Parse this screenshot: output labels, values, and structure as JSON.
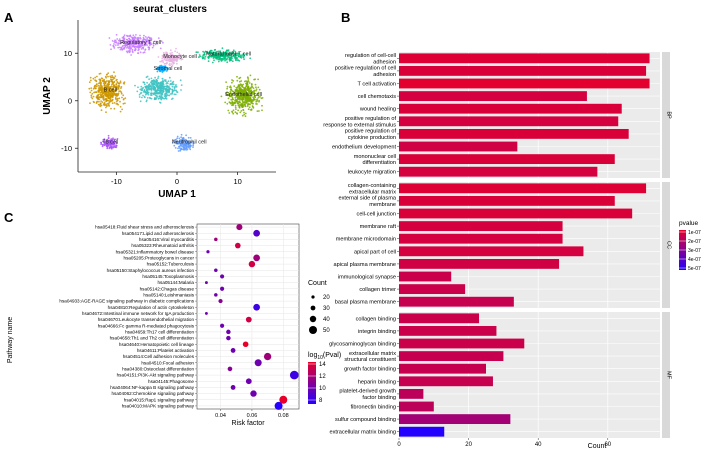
{
  "panel_labels": {
    "a": "A",
    "b": "B",
    "c": "C"
  },
  "chart_data": [
    {
      "id": "A",
      "type": "scatter",
      "title": "seurat_clusters",
      "xlabel": "UMAP 1",
      "ylabel": "UMAP 2",
      "xlim": [
        -16,
        16
      ],
      "ylim": [
        -15,
        17
      ],
      "xticks": [
        -10,
        0,
        10
      ],
      "yticks": [
        -10,
        0,
        10
      ],
      "xtick_labels": [
        "-10",
        "0",
        "10"
      ],
      "ytick_labels": [
        "-10",
        "0",
        "10"
      ],
      "clusters": [
        {
          "name": "Regulatory T cell",
          "color": "#c77cff",
          "center": [
            -7,
            12
          ],
          "spread": [
            3.2,
            1.6
          ],
          "label_at": [
            -6,
            12
          ]
        },
        {
          "name": "Monocyte cell",
          "color": "#e8b2e0",
          "center": [
            -1,
            9
          ],
          "spread": [
            1.5,
            1.4
          ],
          "label_at": [
            0.5,
            9
          ]
        },
        {
          "name": "Stromal cell",
          "color": "#00a9ff",
          "center": [
            -2.5,
            6.8
          ],
          "spread": [
            0.9,
            0.7
          ],
          "label_at": [
            -1.5,
            6.5
          ]
        },
        {
          "name": "Natural killer T cell",
          "color": "#00bf7d",
          "center": [
            7.5,
            9.5
          ],
          "spread": [
            3.5,
            1.2
          ],
          "label_at": [
            8.5,
            9.5
          ]
        },
        {
          "name": "B cell",
          "color": "#cd9600",
          "center": [
            -11.5,
            2
          ],
          "spread": [
            2.5,
            3.2
          ],
          "label_at": [
            -11,
            2
          ]
        },
        {
          "name": "",
          "color": "#3fc3c3",
          "center": [
            -3,
            2.5
          ],
          "spread": [
            3,
            2.2
          ],
          "label_at": [
            0,
            0
          ]
        },
        {
          "name": "Endothelial cell",
          "color": "#7cae00",
          "center": [
            11,
            1
          ],
          "spread": [
            2.5,
            3.2
          ],
          "label_at": [
            11,
            1
          ]
        },
        {
          "name": "T8 cell",
          "color": "#a855f7",
          "center": [
            -11,
            -9
          ],
          "spread": [
            1.2,
            1.2
          ],
          "label_at": [
            -11,
            -9
          ]
        },
        {
          "name": "Neutrophil cell",
          "color": "#619cff",
          "center": [
            1,
            -9
          ],
          "spread": [
            1.4,
            1.4
          ],
          "label_at": [
            2,
            -9
          ]
        }
      ]
    },
    {
      "id": "B",
      "type": "bar",
      "orientation": "horizontal",
      "xlabel": "Count",
      "xlim": [
        0,
        75
      ],
      "xticks": [
        0,
        20,
        40,
        60
      ],
      "xtick_labels": [
        "0",
        "20",
        "40",
        "60"
      ],
      "legend": {
        "title": "pvalue",
        "labels": [
          "1e-07",
          "2e-07",
          "3e-07",
          "4e-07",
          "5e-07"
        ],
        "position": "right"
      },
      "facets": [
        {
          "name": "BP",
          "categories": [
            {
              "label": "regulation of cell-cell\nadhesion",
              "value": 72,
              "p": 1.2e-07
            },
            {
              "label": "positive regulation of cell\nadhesion",
              "value": 71,
              "p": 1.3e-07
            },
            {
              "label": "T cell activation",
              "value": 72,
              "p": 1.1e-07
            },
            {
              "label": "cell chemotaxis",
              "value": 54,
              "p": 1.4e-07
            },
            {
              "label": "wound healing",
              "value": 64,
              "p": 1.3e-07
            },
            {
              "label": "positive regulation of\nresponse to external stimulus",
              "value": 63,
              "p": 1.4e-07
            },
            {
              "label": "positive regulation of\ncytokine production",
              "value": 66,
              "p": 1.3e-07
            },
            {
              "label": "endothelium development",
              "value": 34,
              "p": 1.5e-07
            },
            {
              "label": "mononuclear cell\ndifferentiation",
              "value": 62,
              "p": 1.3e-07
            },
            {
              "label": "leukocyte migration",
              "value": 57,
              "p": 1.4e-07
            }
          ]
        },
        {
          "name": "CC",
          "categories": [
            {
              "label": "collagen-containing\nextracellular matrix",
              "value": 71,
              "p": 1.2e-07
            },
            {
              "label": "external side of plasma\nmembrane",
              "value": 62,
              "p": 1.3e-07
            },
            {
              "label": "cell-cell junction",
              "value": 67,
              "p": 1.3e-07
            },
            {
              "label": "membrane raft",
              "value": 47,
              "p": 1.4e-07
            },
            {
              "label": "membrane microdomain",
              "value": 47,
              "p": 1.4e-07
            },
            {
              "label": "apical part of cell",
              "value": 53,
              "p": 1.4e-07
            },
            {
              "label": "apical plasma membrane",
              "value": 46,
              "p": 1.5e-07
            },
            {
              "label": "immunological synapse",
              "value": 15,
              "p": 1.6e-07
            },
            {
              "label": "collagen trimer",
              "value": 19,
              "p": 1.6e-07
            },
            {
              "label": "basal plasma membrane",
              "value": 33,
              "p": 1.7e-07
            }
          ]
        },
        {
          "name": "MF",
          "categories": [
            {
              "label": "collagen binding",
              "value": 23,
              "p": 1.6e-07
            },
            {
              "label": "integrin binding",
              "value": 28,
              "p": 1.6e-07
            },
            {
              "label": "glycosaminoglycan binding",
              "value": 36,
              "p": 1.6e-07
            },
            {
              "label": "extracellular matrix\nstructural constituent",
              "value": 30,
              "p": 1.7e-07
            },
            {
              "label": "growth factor binding",
              "value": 25,
              "p": 1.7e-07
            },
            {
              "label": "heparin binding",
              "value": 27,
              "p": 1.7e-07
            },
            {
              "label": "platelet-derived growth\nfactor binding",
              "value": 7,
              "p": 1.9e-07
            },
            {
              "label": "fibronectin binding",
              "value": 10,
              "p": 1.9e-07
            },
            {
              "label": "sulfur compound binding",
              "value": 32,
              "p": 2.4e-07
            },
            {
              "label": "extracellular matrix binding",
              "value": 13,
              "p": 5e-07
            }
          ]
        }
      ]
    },
    {
      "id": "C",
      "type": "scatter",
      "xlabel": "Risk factor",
      "ylabel": "Pathway name",
      "xlim": [
        0.025,
        0.09
      ],
      "xticks": [
        0.04,
        0.06,
        0.08
      ],
      "xtick_labels": [
        "0.04",
        "0.06",
        "0.08"
      ],
      "size_legend": {
        "title": "Count",
        "labels": [
          "20",
          "30",
          "40",
          "50"
        ],
        "values": [
          20,
          30,
          40,
          50
        ]
      },
      "color_legend": {
        "title": "log",
        "title_sub": "10",
        "title_tail": "(Pval)",
        "labels": [
          "14",
          "12",
          "10",
          "8"
        ],
        "values": [
          14,
          12,
          10,
          8
        ]
      },
      "points": [
        {
          "label": "hsa05418:Fluid shear stress and atherosclerosis",
          "x": 0.052,
          "count": 38,
          "logp": 11
        },
        {
          "label": "hsa05417:Lipid and atherosclerosis",
          "x": 0.063,
          "count": 42,
          "logp": 8
        },
        {
          "label": "hsa05416:Viral myocarditis",
          "x": 0.037,
          "count": 22,
          "logp": 11
        },
        {
          "label": "hsa05323:Rheumatoid arthritis",
          "x": 0.051,
          "count": 35,
          "logp": 13
        },
        {
          "label": "hsa05321:Inflammatory bowel disease",
          "x": 0.032,
          "count": 20,
          "logp": 9
        },
        {
          "label": "hsa05205:Proteoglycans in cancer",
          "x": 0.063,
          "count": 42,
          "logp": 11
        },
        {
          "label": "hsa05152:Tuberculosis",
          "x": 0.06,
          "count": 40,
          "logp": 13
        },
        {
          "label": "hsa05150:Staphylococcus aureus infection",
          "x": 0.037,
          "count": 22,
          "logp": 9
        },
        {
          "label": "hsa05145:Toxoplasmosis",
          "x": 0.041,
          "count": 26,
          "logp": 9
        },
        {
          "label": "hsa05144:Malaria",
          "x": 0.031,
          "count": 18,
          "logp": 9
        },
        {
          "label": "hsa05142:Chagas disease",
          "x": 0.041,
          "count": 26,
          "logp": 9
        },
        {
          "label": "hsa05140:Leishmaniasis",
          "x": 0.037,
          "count": 22,
          "logp": 9
        },
        {
          "label": "hsa04933:AGE-RAGE signaling pathway in diabetic complications",
          "x": 0.04,
          "count": 26,
          "logp": 10
        },
        {
          "label": "hsa04810:Regulation of actin cytoskeleton",
          "x": 0.063,
          "count": 42,
          "logp": 7
        },
        {
          "label": "hsa04672:Intestinal immune network for IgA production",
          "x": 0.031,
          "count": 18,
          "logp": 9
        },
        {
          "label": "hsa04670:Leukocyte transendothelial migration",
          "x": 0.058,
          "count": 36,
          "logp": 13
        },
        {
          "label": "hsa04666:Fc gamma R-mediated phagocytosis",
          "x": 0.041,
          "count": 26,
          "logp": 9
        },
        {
          "label": "hsa04659:Th17 cell differentiation",
          "x": 0.045,
          "count": 28,
          "logp": 9
        },
        {
          "label": "hsa04658:Th1 and Th2 cell differentiation",
          "x": 0.045,
          "count": 28,
          "logp": 9
        },
        {
          "label": "hsa04640:Hematopoietic cell lineage",
          "x": 0.056,
          "count": 35,
          "logp": 14
        },
        {
          "label": "hsa04611:Platelet activation",
          "x": 0.048,
          "count": 30,
          "logp": 9
        },
        {
          "label": "hsa04514:Cell adhesion molecules",
          "x": 0.07,
          "count": 46,
          "logp": 11
        },
        {
          "label": "hsa04510:Focal adhesion",
          "x": 0.064,
          "count": 44,
          "logp": 9
        },
        {
          "label": "hsa04380:Osteoclast differentiation",
          "x": 0.046,
          "count": 29,
          "logp": 10
        },
        {
          "label": "hsa04151:PI3K-Akt signaling pathway",
          "x": 0.087,
          "count": 54,
          "logp": 7
        },
        {
          "label": "hsa04145:Phagosome",
          "x": 0.058,
          "count": 36,
          "logp": 9
        },
        {
          "label": "hsa04064:NF-kappa B signaling pathway",
          "x": 0.048,
          "count": 30,
          "logp": 9
        },
        {
          "label": "hsa04062:Chemokine signaling pathway",
          "x": 0.061,
          "count": 40,
          "logp": 9
        },
        {
          "label": "hsa04015:Rap1 signaling pathway",
          "x": 0.08,
          "count": 50,
          "logp": 14
        },
        {
          "label": "hsa04010:MAPK signaling pathway",
          "x": 0.077,
          "count": 50,
          "logp": 6
        }
      ]
    }
  ]
}
